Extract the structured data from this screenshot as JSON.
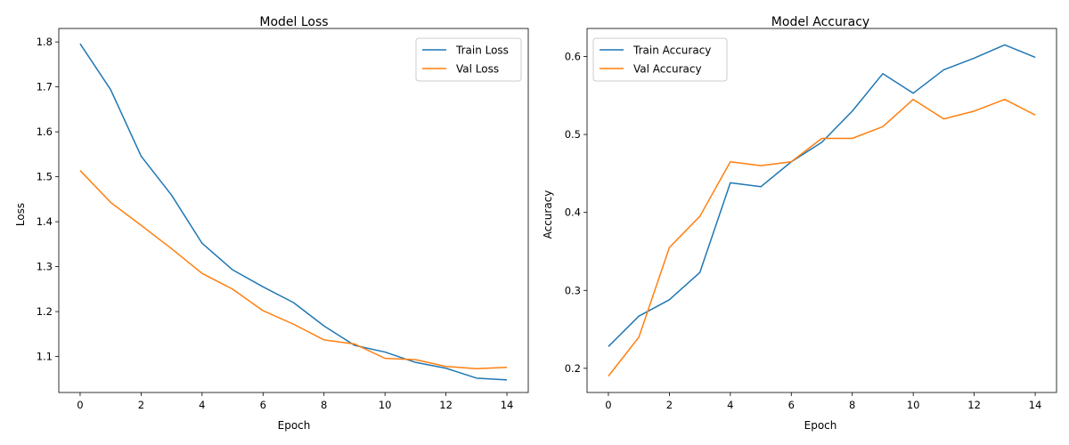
{
  "colors": {
    "series1": "#1f77b4",
    "series2": "#ff7f0e"
  },
  "chart_data": [
    {
      "type": "line",
      "title": "Model Loss",
      "xlabel": "Epoch",
      "ylabel": "Loss",
      "xlim": [
        -0.7,
        14.7
      ],
      "ylim": [
        1.02,
        1.83
      ],
      "xticks": [
        0,
        2,
        4,
        6,
        8,
        10,
        12,
        14
      ],
      "yticks": [
        1.1,
        1.2,
        1.3,
        1.4,
        1.5,
        1.6,
        1.7,
        1.8
      ],
      "ytick_labels": [
        "1.1",
        "1.2",
        "1.3",
        "1.4",
        "1.5",
        "1.6",
        "1.7",
        "1.8"
      ],
      "legend_position": "top-right",
      "grid": false,
      "x": [
        0,
        1,
        2,
        3,
        4,
        5,
        6,
        7,
        8,
        9,
        10,
        11,
        12,
        13,
        14
      ],
      "series": [
        {
          "name": "Train Loss",
          "values": [
            1.796,
            1.694,
            1.546,
            1.459,
            1.352,
            1.293,
            1.255,
            1.22,
            1.168,
            1.125,
            1.11,
            1.087,
            1.074,
            1.052,
            1.048
          ]
        },
        {
          "name": "Val Loss",
          "values": [
            1.514,
            1.443,
            1.392,
            1.34,
            1.285,
            1.25,
            1.202,
            1.172,
            1.137,
            1.128,
            1.096,
            1.093,
            1.078,
            1.073,
            1.076
          ]
        }
      ]
    },
    {
      "type": "line",
      "title": "Model Accuracy",
      "xlabel": "Epoch",
      "ylabel": "Accuracy",
      "xlim": [
        -0.7,
        14.7
      ],
      "ylim": [
        0.169,
        0.636
      ],
      "xticks": [
        0,
        2,
        4,
        6,
        8,
        10,
        12,
        14
      ],
      "yticks": [
        0.2,
        0.3,
        0.4,
        0.5,
        0.6
      ],
      "ytick_labels": [
        "0.2",
        "0.3",
        "0.4",
        "0.5",
        "0.6"
      ],
      "legend_position": "top-left",
      "grid": false,
      "x": [
        0,
        1,
        2,
        3,
        4,
        5,
        6,
        7,
        8,
        9,
        10,
        11,
        12,
        13,
        14
      ],
      "series": [
        {
          "name": "Train Accuracy",
          "values": [
            0.228,
            0.267,
            0.288,
            0.323,
            0.438,
            0.433,
            0.465,
            0.49,
            0.53,
            0.578,
            0.553,
            0.583,
            0.598,
            0.615,
            0.599
          ]
        },
        {
          "name": "Val Accuracy",
          "values": [
            0.19,
            0.24,
            0.355,
            0.395,
            0.465,
            0.46,
            0.465,
            0.495,
            0.495,
            0.51,
            0.545,
            0.52,
            0.53,
            0.545,
            0.525
          ]
        }
      ]
    }
  ]
}
